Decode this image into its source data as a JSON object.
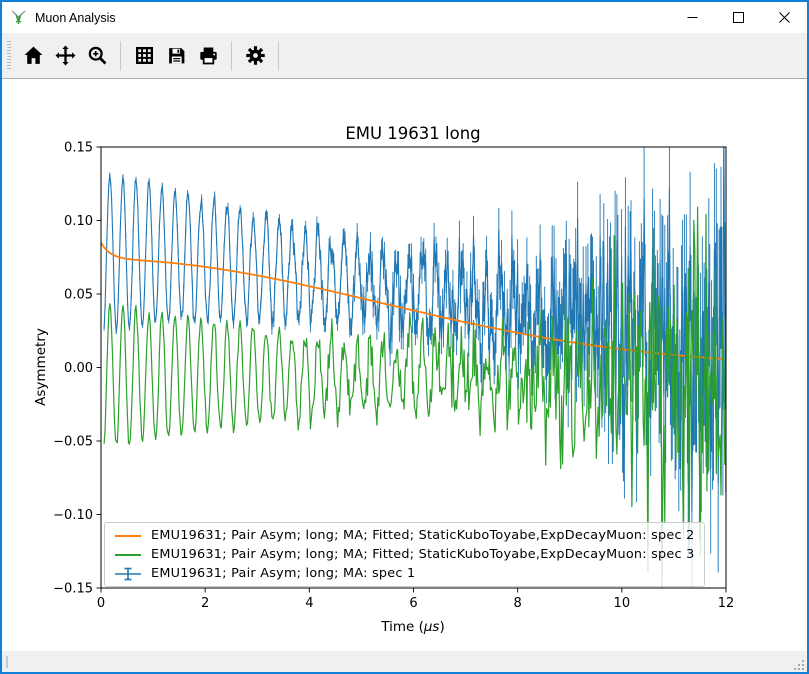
{
  "window": {
    "title": "Muon Analysis",
    "controls": [
      {
        "name": "minimize"
      },
      {
        "name": "maximize"
      },
      {
        "name": "close"
      }
    ]
  },
  "toolbar": {
    "buttons": [
      {
        "name": "home",
        "icon": "home-icon"
      },
      {
        "name": "pan",
        "icon": "move-arrows-icon"
      },
      {
        "name": "zoom",
        "icon": "magnifier-plus-icon"
      },
      {
        "name": "grid",
        "icon": "grid-icon"
      },
      {
        "name": "save",
        "icon": "floppy-disk-icon"
      },
      {
        "name": "print",
        "icon": "printer-icon"
      },
      {
        "name": "settings",
        "icon": "gear-icon"
      }
    ]
  },
  "statusbar": {
    "text": ""
  },
  "chart_data": {
    "type": "line",
    "title": "EMU 19631 long",
    "xlabel": "Time (μs)",
    "xlabel_parts": {
      "pre": "Time (",
      "unit": "μs",
      "post": ")"
    },
    "ylabel": "Asymmetry",
    "xlim": [
      0,
      12
    ],
    "ylim": [
      -0.15,
      0.15
    ],
    "grid": false,
    "legend_position": "lower left",
    "xticks": [
      {
        "v": 0,
        "label": "0"
      },
      {
        "v": 2,
        "label": "2"
      },
      {
        "v": 4,
        "label": "4"
      },
      {
        "v": 6,
        "label": "6"
      },
      {
        "v": 8,
        "label": "8"
      },
      {
        "v": 10,
        "label": "10"
      },
      {
        "v": 12,
        "label": "12"
      }
    ],
    "yticks": [
      {
        "v": 0.15,
        "label": "0.15"
      },
      {
        "v": 0.1,
        "label": "0.10"
      },
      {
        "v": 0.05,
        "label": "0.05"
      },
      {
        "v": 0.0,
        "label": "0.00"
      },
      {
        "v": -0.05,
        "label": "−0.05"
      },
      {
        "v": -0.1,
        "label": "−0.10"
      },
      {
        "v": -0.15,
        "label": "−0.15"
      }
    ],
    "draw_order": [
      2,
      0,
      1
    ],
    "series": [
      {
        "label": "EMU19631; Pair Asym; long; MA; Fitted; StaticKuboToyabe,ExpDecayMuon: spec 2",
        "color": "#ff7f0e",
        "kind": "fit",
        "linewidth": 1.8,
        "model": {
          "t_start": 0.0,
          "t_end": 12.0,
          "dt": 0.05,
          "fit": {
            "a_slow": 0.0735,
            "tau_gauss": 7.5,
            "a_fast": 0.0115,
            "tau_fast": 0.18
          }
        },
        "fit_samples": [
          [
            0,
            0.085
          ],
          [
            1,
            0.0722
          ],
          [
            2,
            0.0684
          ],
          [
            3,
            0.0627
          ],
          [
            4,
            0.0554
          ],
          [
            5,
            0.0471
          ],
          [
            6,
            0.0387
          ],
          [
            7,
            0.0306
          ],
          [
            8,
            0.0235
          ],
          [
            9,
            0.0175
          ],
          [
            10,
            0.0126
          ],
          [
            11,
            0.0086
          ],
          [
            12,
            0.0057
          ]
        ]
      },
      {
        "label": "EMU19631; Pair Asym; long; MA; Fitted; StaticKuboToyabe,ExpDecayMuon: spec 3",
        "color": "#2ca02c",
        "kind": "data",
        "linewidth": 1.2,
        "model": {
          "t_start": 0.06,
          "t_end": 12.0,
          "dt": 0.018,
          "seed": 987,
          "center": {
            "base": -0.006,
            "amp": 0.0,
            "tau_gauss": 8.0
          },
          "osc": {
            "amp": 0.05,
            "tau": 7.0,
            "period": 0.25,
            "t_peak": 0.17
          },
          "noise": {
            "sigma0": 0.0013,
            "tau": 3.0
          }
        }
      },
      {
        "label": "EMU19631; Pair Asym; long; MA: spec 1",
        "color": "#1f77b4",
        "kind": "errorbar-data",
        "linewidth": 1.1,
        "model": {
          "t_start": 0.06,
          "t_end": 12.0,
          "dt": 0.018,
          "seed": 1234,
          "center": {
            "base": 0.012,
            "amp": 0.066,
            "tau_gauss": 8.0
          },
          "osc": {
            "amp": 0.055,
            "tau": 7.0,
            "period": 0.25,
            "t_peak": 0.17
          },
          "noise": {
            "sigma0": 0.0013,
            "tau": 3.0
          },
          "errorbar": {
            "scale": 0.9
          }
        }
      }
    ]
  }
}
